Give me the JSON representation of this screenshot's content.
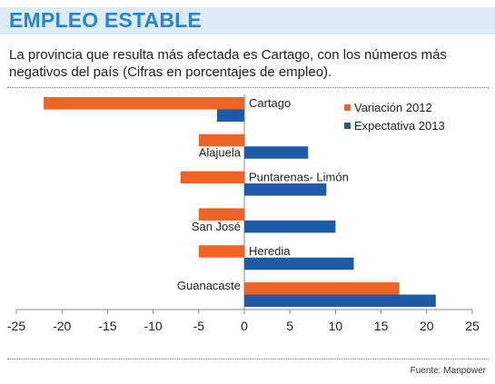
{
  "header": {
    "title": "EMPLEO ESTABLE",
    "subtitle": "La provincia que resulta más afectada es Cartago, con los números más negativos del país (Cifras en porcentajes de empleo)."
  },
  "source": "Fuente: Manpower",
  "colors": {
    "series_2012": "#f06423",
    "series_2013": "#1f5aa6",
    "header_bg": "#dcebf6",
    "title": "#2a86c8"
  },
  "chart_data": {
    "type": "bar",
    "orientation": "horizontal",
    "categories": [
      "Cartago",
      "Alajuela",
      "Puntarenas- Limón",
      "San José",
      "Heredia",
      "Guanacaste"
    ],
    "series": [
      {
        "name": "Variación 2012",
        "values": [
          -22,
          -5,
          -7,
          -5,
          -5,
          17
        ]
      },
      {
        "name": "Expectativa 2013",
        "values": [
          -3,
          7,
          9,
          10,
          12,
          21
        ]
      }
    ],
    "xlim": [
      -25,
      25
    ],
    "xticks": [
      -25,
      -20,
      -15,
      -10,
      -5,
      0,
      5,
      10,
      15,
      20,
      25
    ],
    "legend_position": "top-right",
    "grid": false
  }
}
